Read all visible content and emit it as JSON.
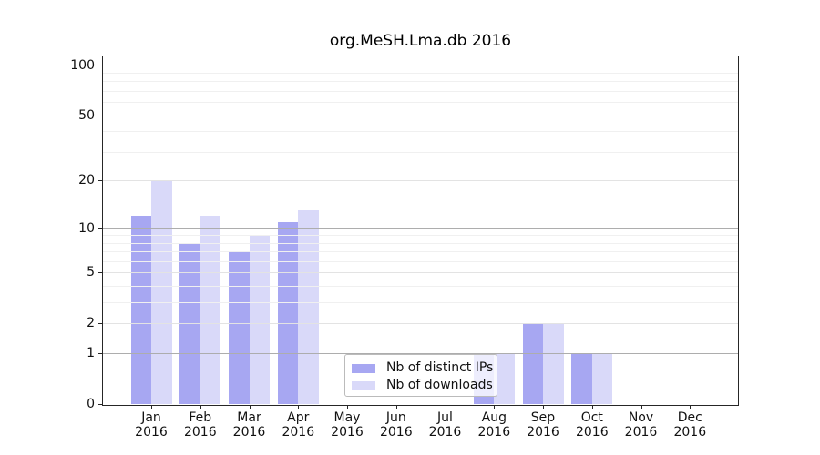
{
  "title": "org.MeSH.Lma.db 2016",
  "chart_data": {
    "type": "bar",
    "title": "org.MeSH.Lma.db 2016",
    "x": {
      "months": [
        "Jan",
        "Feb",
        "Mar",
        "Apr",
        "May",
        "Jun",
        "Jul",
        "Aug",
        "Sep",
        "Oct",
        "Nov",
        "Dec"
      ],
      "year": "2016"
    },
    "series": [
      {
        "name": "Nb of distinct IPs",
        "color": "#a7a7f2",
        "values": [
          12,
          8,
          7,
          11,
          0,
          0,
          0,
          1,
          2,
          1,
          0,
          0
        ]
      },
      {
        "name": "Nb of downloads",
        "color": "#d9d9f9",
        "values": [
          20,
          12,
          9,
          13,
          0,
          0,
          0,
          1,
          2,
          1,
          0,
          0
        ]
      }
    ],
    "y_axis": {
      "scale": "log1p",
      "tick_labels": [
        100,
        50,
        20,
        10,
        5,
        2,
        1,
        0
      ],
      "max": 112.8,
      "grid_strong": [
        1,
        10,
        100
      ],
      "grid_mid": [
        2,
        5,
        20,
        50
      ],
      "grid_minor": [
        3,
        4,
        6,
        7,
        8,
        9,
        30,
        40,
        60,
        70,
        80,
        90
      ]
    },
    "legend": {
      "entries": [
        "Nb of distinct IPs",
        "Nb of downloads"
      ],
      "location": "lower center"
    },
    "grid": true
  },
  "colors": {
    "grid_strong": "#adadad",
    "grid_mid": "#e3e3e3",
    "grid_minor": "#f0f0f0",
    "spine": "#262626",
    "legend_border": "#bbbbbb"
  }
}
